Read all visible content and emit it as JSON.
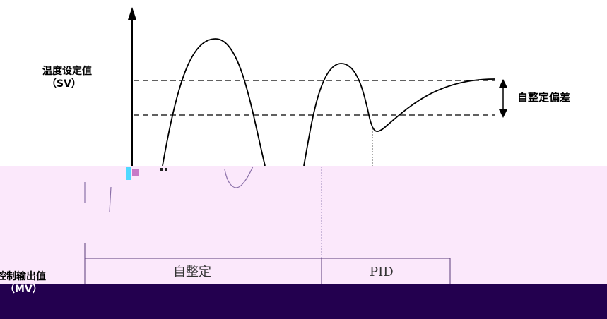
{
  "diagram": {
    "setpoint_label_line1": "温度设定值",
    "setpoint_label_line2": "（SV）",
    "deviation_label": "自整定偏差",
    "control_output_label_line1": "控制输出值",
    "control_output_label_line2": "（MV）",
    "phase_autotune_label": "自整定",
    "phase_pid_label": "PID"
  },
  "colors": {
    "line": "#000000",
    "pink_band": "#fbe8fb",
    "navy_band": "#23004f",
    "phase_box_line": "#5a3a7a",
    "lower_curve": "#8a6fa8"
  }
}
